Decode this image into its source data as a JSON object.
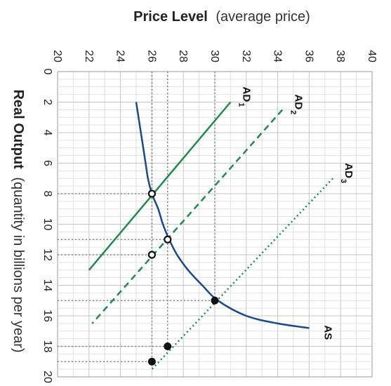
{
  "chart_data": {
    "type": "line",
    "orientation": "rotated-90-clockwise",
    "title": "",
    "price_axis": {
      "title_bold": "Price Level",
      "title_rest": "(average price)",
      "ticks": [
        "20",
        "22",
        "24",
        "26",
        "28",
        "30",
        "32",
        "34",
        "36",
        "38",
        "40"
      ],
      "range": [
        20,
        40
      ]
    },
    "output_axis": {
      "title_bold": "Real Output",
      "title_rest": "(quantity in billions per year)",
      "ticks": [
        "0",
        "2",
        "4",
        "6",
        "8",
        "10",
        "12",
        "14",
        "16",
        "18",
        "20"
      ],
      "range": [
        0,
        20
      ]
    },
    "grid": true,
    "series": [
      {
        "name": "AD",
        "subscript": "1",
        "style": "solid",
        "color": "#1f8a4c",
        "points": [
          [
            2,
            31
          ],
          [
            13,
            22
          ]
        ]
      },
      {
        "name": "AD",
        "subscript": "2",
        "style": "dashed",
        "color": "#1f8a4c",
        "points": [
          [
            2.5,
            34.3
          ],
          [
            16.5,
            22.2
          ]
        ]
      },
      {
        "name": "AD",
        "subscript": "3",
        "style": "dotted",
        "color": "#1f8a4c",
        "points": [
          [
            7,
            37.5
          ],
          [
            19.5,
            26
          ]
        ]
      },
      {
        "name": "AS",
        "subscript": "",
        "style": "solid",
        "color": "#1a4a8c",
        "points": [
          [
            2,
            25
          ],
          [
            4,
            25.3
          ],
          [
            6,
            25.6
          ],
          [
            7,
            25.75
          ],
          [
            8,
            26
          ],
          [
            9,
            26.4
          ],
          [
            10,
            26.7
          ],
          [
            11,
            27.1
          ],
          [
            12,
            27.6
          ],
          [
            13,
            28.3
          ],
          [
            14,
            29.2
          ],
          [
            15,
            30.2
          ],
          [
            16,
            32
          ],
          [
            16.5,
            34
          ],
          [
            16.8,
            36
          ]
        ]
      }
    ],
    "points": [
      {
        "x": 8,
        "y": 26,
        "filled": false
      },
      {
        "x": 11,
        "y": 27,
        "filled": false
      },
      {
        "x": 12,
        "y": 26,
        "filled": false
      },
      {
        "x": 15,
        "y": 30,
        "filled": true
      },
      {
        "x": 18,
        "y": 27,
        "filled": true
      },
      {
        "x": 19,
        "y": 26,
        "filled": true
      }
    ],
    "guide_lines": [
      {
        "x": 8,
        "y": 26
      },
      {
        "x": 11,
        "y": 27
      },
      {
        "x": 12,
        "y": 26
      },
      {
        "x": 15,
        "y": 30
      },
      {
        "x": 18,
        "y": 27
      },
      {
        "x": 19,
        "y": 26
      }
    ]
  }
}
